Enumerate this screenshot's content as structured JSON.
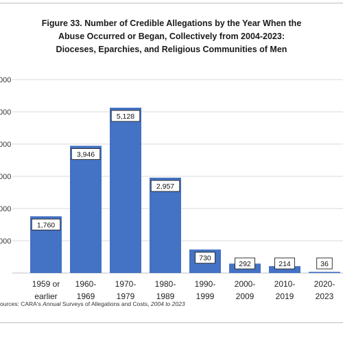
{
  "chart_data": {
    "type": "bar",
    "title_lines": [
      "Figure 33. Number of Credible Allegations by the Year When the",
      "Abuse Occurred or Began, Collectively from 2004-2023:",
      "Dioceses, Eparchies, and Religious Communities of Men"
    ],
    "categories": [
      [
        "1959 or",
        "earlier"
      ],
      [
        "1960-",
        "1969"
      ],
      [
        "1970-",
        "1979"
      ],
      [
        "1980-",
        "1989"
      ],
      [
        "1990-",
        "1999"
      ],
      [
        "2000-",
        "2009"
      ],
      [
        "2010-",
        "2019"
      ],
      [
        "2020-",
        "2023"
      ]
    ],
    "values": [
      1760,
      3946,
      5128,
      2957,
      730,
      292,
      214,
      36
    ],
    "data_labels": [
      "1,760",
      "3,946",
      "5,128",
      "2,957",
      "730",
      "292",
      "214",
      "36"
    ],
    "y_tick_labels": [
      "",
      "000",
      "000",
      "000",
      "000",
      "000",
      "000"
    ],
    "ylim": [
      0,
      6000
    ],
    "bar_color": "#4472c4",
    "grid": true,
    "legend": "none"
  },
  "source": {
    "prefix": "ources: CARA's ",
    "italic1": "Annual",
    "middle": " Surveys of Allegations and Costs, ",
    "italic2": "2004 to 2023"
  }
}
